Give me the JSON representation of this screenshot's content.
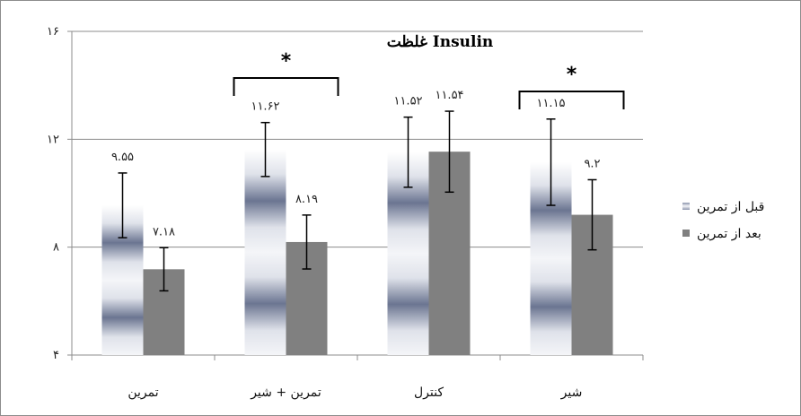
{
  "chart_data": {
    "type": "bar",
    "title": "غلظت Insulin",
    "categories": [
      "تمرین",
      "تمرین + شیر",
      "کنترل",
      "شیر"
    ],
    "series": [
      {
        "name": "قبل از تمرین",
        "values": [
          9.55,
          11.62,
          11.52,
          11.15
        ],
        "labels": [
          "۹.۵۵",
          "۱۱.۶۲",
          "۱۱.۵۲",
          "۱۱.۱۵"
        ],
        "errors": [
          1.2,
          1.0,
          1.3,
          1.6
        ]
      },
      {
        "name": "بعد از تمرین",
        "values": [
          7.18,
          8.19,
          11.54,
          9.2
        ],
        "labels": [
          "۷.۱۸",
          "۸.۱۹",
          "۱۱.۵۴",
          "۹.۲"
        ],
        "errors": [
          0.8,
          1.0,
          1.5,
          1.3
        ]
      }
    ],
    "ylim": [
      4,
      16
    ],
    "yticks": [
      4,
      8,
      12,
      16
    ],
    "ytick_labels": [
      "۴",
      "۸",
      "۱۲",
      "۱۶"
    ],
    "significance": [
      {
        "category_index": 1,
        "marker": "*"
      },
      {
        "category_index": 3,
        "marker": "*"
      }
    ],
    "grid": true,
    "legend_position": "right",
    "colors": {
      "before_dark": "#6b7591",
      "before_light": "#f4f5f8",
      "after": "#808080",
      "grid": "#8c8c8c"
    }
  }
}
